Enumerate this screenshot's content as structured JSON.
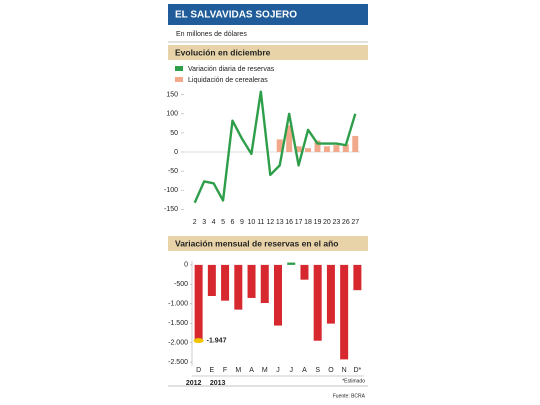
{
  "header": {
    "title": "EL SALVAVIDAS SOJERO",
    "subtitle": "En millones de dólares"
  },
  "footer": {
    "note": "*Estimado",
    "source": "Fuente: BCRA"
  },
  "chart_data": [
    {
      "type": "line",
      "title": "Evolución en diciembre",
      "categories": [
        "2",
        "3",
        "4",
        "5",
        "6",
        "9",
        "10",
        "11",
        "12",
        "13",
        "16",
        "17",
        "18",
        "19",
        "20",
        "23",
        "26",
        "27"
      ],
      "series": [
        {
          "name": "Variación diaria de reservas",
          "color": "#2e9e4a",
          "kind": "line",
          "values": [
            -133,
            -77,
            -82,
            -127,
            82,
            35,
            -5,
            158,
            -60,
            -35,
            100,
            -35,
            58,
            22,
            22,
            22,
            18,
            100
          ]
        },
        {
          "name": "Liquidación de cerealeras",
          "color": "#f2a98b",
          "kind": "bar",
          "values": [
            null,
            null,
            null,
            null,
            null,
            null,
            null,
            null,
            null,
            33,
            70,
            15,
            10,
            30,
            15,
            18,
            20,
            42
          ]
        }
      ],
      "ylim": [
        -165,
        165
      ],
      "yticks": [
        -150,
        -100,
        -50,
        0,
        50,
        100,
        150
      ]
    },
    {
      "type": "bar",
      "title": "Variación mensual de reservas en el año",
      "categories": [
        "D",
        "E",
        "F",
        "M",
        "A",
        "M",
        "J",
        "J",
        "A",
        "S",
        "O",
        "N",
        "D*"
      ],
      "values": [
        -1947,
        -800,
        -920,
        -1150,
        -850,
        -980,
        -1560,
        60,
        -380,
        -1950,
        -1510,
        -2430,
        -650
      ],
      "value_labels": [
        "-1.947",
        null,
        null,
        null,
        null,
        null,
        null,
        null,
        null,
        null,
        null,
        null,
        null
      ],
      "years": [
        "2012",
        "2013"
      ],
      "color": "#d7282f",
      "positive_color": "#2e9e4a",
      "ylim": [
        -2600,
        100
      ],
      "yticks": [
        {
          "value": -2500,
          "label": "-2.500"
        },
        {
          "value": -2000,
          "label": "-2.000"
        },
        {
          "value": -1500,
          "label": "-1.500"
        },
        {
          "value": -1000,
          "label": "-1.000"
        },
        -500,
        0
      ]
    }
  ]
}
